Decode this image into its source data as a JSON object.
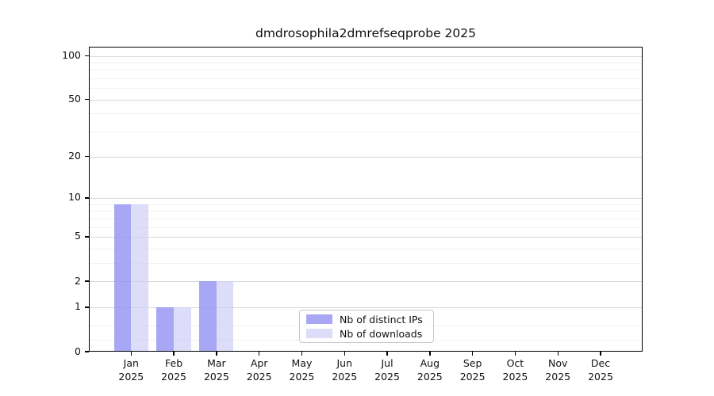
{
  "chart_data": {
    "type": "bar",
    "title": "dmdrosophila2dmrefseqprobe 2025",
    "categories": [
      "Jan",
      "Feb",
      "Mar",
      "Apr",
      "May",
      "Jun",
      "Jul",
      "Aug",
      "Sep",
      "Oct",
      "Nov",
      "Dec"
    ],
    "category_year": "2025",
    "series": [
      {
        "name": "Nb of distinct IPs",
        "color": "rgba(148,148,243,0.82)",
        "values": [
          9,
          1,
          2,
          0,
          0,
          0,
          0,
          0,
          0,
          0,
          0,
          0
        ]
      },
      {
        "name": "Nb of downloads",
        "color": "rgba(203,203,248,0.65)",
        "values": [
          9,
          1,
          2,
          0,
          0,
          0,
          0,
          0,
          0,
          0,
          0,
          0
        ]
      }
    ],
    "xlabel": "",
    "ylabel": "",
    "y_scale": "log10(1+y)",
    "y_ticks": [
      0,
      1,
      2,
      5,
      10,
      20,
      50,
      100
    ],
    "y_minor_ticks": [
      0.2,
      0.5,
      3,
      4,
      6,
      7,
      8,
      9,
      30,
      40,
      60,
      70,
      80,
      90
    ],
    "ylim": [
      0,
      113
    ],
    "grid": "horizontal",
    "legend": {
      "position": "lower-center",
      "entries": [
        "Nb of distinct IPs",
        "Nb of downloads"
      ]
    }
  }
}
